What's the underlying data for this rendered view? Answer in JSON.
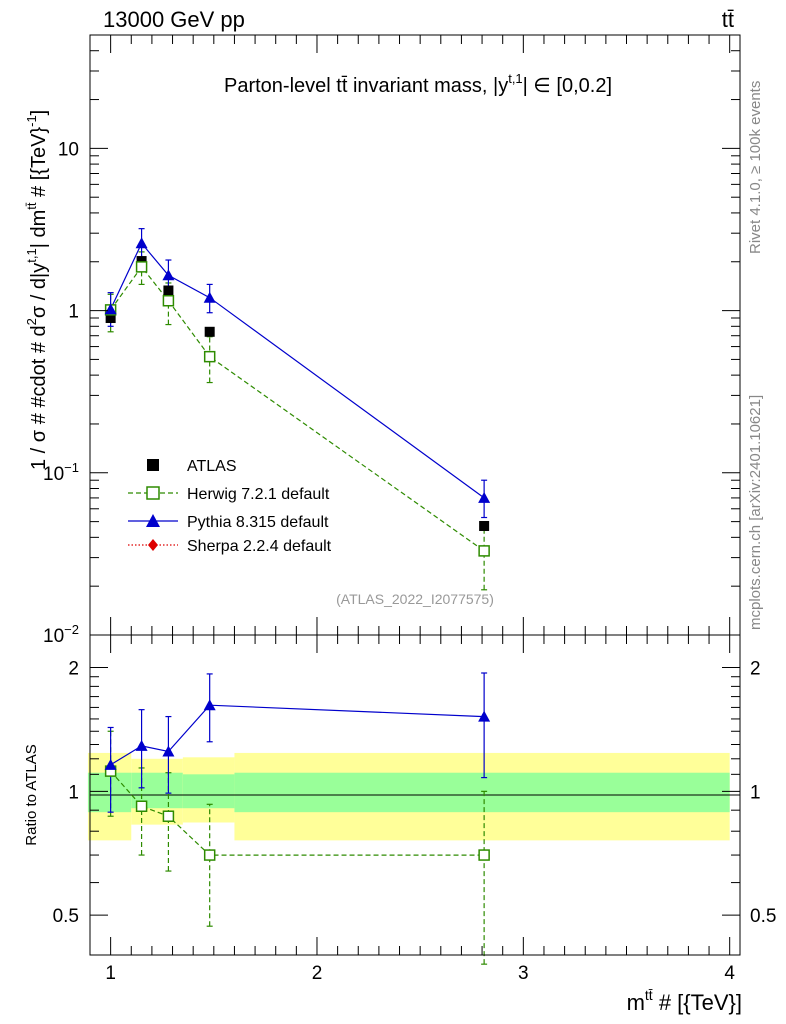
{
  "header": {
    "left_label": "13000 GeV pp",
    "right_label": "tt̄"
  },
  "side_labels": {
    "rivet": "Rivet 4.1.0, ≥ 100k events",
    "mcplots": "mcplots.cern.ch [arXiv:2401.10621]"
  },
  "chart_data": [
    {
      "id": "main",
      "type": "scatter",
      "title": "Parton-level tt̄ invariant mass, |y^{t,1}| ∈ [0,0.2]",
      "title_parts": {
        "pre": "Parton-level tt̄ invariant mass, |y",
        "sup": "t,1",
        "post": "| ∈ [0,0.2]"
      },
      "watermark": "(ATLAS_2022_I2077575)",
      "ylabel_parts": {
        "a": "1 / σ # #cdot # d",
        "sup1": "2",
        "b": "σ / d|y",
        "sup2": "t,1",
        "c": "| dm",
        "sup3": "tt̄",
        "d": " # [{TeV}",
        "sup4": "-1",
        "e": "]"
      },
      "yscale": "log",
      "ylim": [
        0.01,
        50
      ],
      "xlim": [
        0.9,
        4.05
      ],
      "y_ticks": [
        {
          "value": 0.01,
          "label": "10",
          "sup": "−2"
        },
        {
          "value": 0.1,
          "label": "10",
          "sup": "−1"
        },
        {
          "value": 1,
          "label": "1",
          "sup": ""
        },
        {
          "value": 10,
          "label": "10",
          "sup": ""
        }
      ],
      "series": [
        {
          "name": "ATLAS",
          "marker": "square-filled",
          "color": "#000000",
          "points": [
            {
              "x": 1.0,
              "y": 0.9
            },
            {
              "x": 1.15,
              "y": 2.02
            },
            {
              "x": 1.28,
              "y": 1.33
            },
            {
              "x": 1.48,
              "y": 0.74
            },
            {
              "x": 2.81,
              "y": 0.047
            }
          ]
        },
        {
          "name": "Herwig 7.2.1 default",
          "marker": "square-open",
          "line": "dashed",
          "color": "#2e8b00",
          "points": [
            {
              "x": 1.0,
              "y": 1.01,
              "lo": 0.74,
              "hi": 1.26
            },
            {
              "x": 1.15,
              "y": 1.86,
              "lo": 1.45,
              "hi": 2.3
            },
            {
              "x": 1.28,
              "y": 1.15,
              "lo": 0.82,
              "hi": 1.48
            },
            {
              "x": 1.48,
              "y": 0.52,
              "lo": 0.36,
              "hi": 0.69
            },
            {
              "x": 2.81,
              "y": 0.033,
              "lo": 0.019,
              "hi": 0.047
            }
          ]
        },
        {
          "name": "Pythia 8.315 default",
          "marker": "triangle-filled",
          "line": "solid",
          "color": "#0000cc",
          "points": [
            {
              "x": 1.0,
              "y": 1.02,
              "lo": 0.8,
              "hi": 1.29
            },
            {
              "x": 1.15,
              "y": 2.6,
              "lo": 2.05,
              "hi": 3.2
            },
            {
              "x": 1.28,
              "y": 1.65,
              "lo": 1.32,
              "hi": 2.05
            },
            {
              "x": 1.48,
              "y": 1.2,
              "lo": 0.97,
              "hi": 1.45
            },
            {
              "x": 2.81,
              "y": 0.07,
              "lo": 0.053,
              "hi": 0.09
            }
          ]
        },
        {
          "name": "Sherpa 2.2.4 default",
          "marker": "diamond-filled",
          "line": "dotted",
          "color": "#dd0000",
          "points": []
        }
      ]
    },
    {
      "id": "ratio",
      "type": "scatter",
      "ylabel": "Ratio to ATLAS",
      "xlabel_parts": {
        "pre": "m",
        "sup": "tt̄",
        "post": " # [{TeV}]"
      },
      "yscale": "log",
      "ylim": [
        0.4,
        2.4
      ],
      "xlim": [
        0.9,
        4.05
      ],
      "x_ticks": [
        {
          "value": 1,
          "label": "1"
        },
        {
          "value": 2,
          "label": "2"
        },
        {
          "value": 3,
          "label": "3"
        },
        {
          "value": 4,
          "label": "4"
        }
      ],
      "y_ticks": [
        {
          "value": 0.5,
          "label": "0.5"
        },
        {
          "value": 1,
          "label": "1"
        },
        {
          "value": 2,
          "label": "2"
        }
      ],
      "bands": [
        {
          "x0": 0.89,
          "x1": 1.1,
          "stat_lo": 0.89,
          "stat_hi": 1.11,
          "tot_lo": 0.76,
          "tot_hi": 1.24
        },
        {
          "x0": 1.1,
          "x1": 1.35,
          "stat_lo": 0.91,
          "stat_hi": 1.11,
          "tot_lo": 0.83,
          "tot_hi": 1.2
        },
        {
          "x0": 1.35,
          "x1": 1.6,
          "stat_lo": 0.91,
          "stat_hi": 1.1,
          "tot_lo": 0.84,
          "tot_hi": 1.21
        },
        {
          "x0": 1.6,
          "x1": 4.0,
          "stat_lo": 0.89,
          "stat_hi": 1.11,
          "tot_lo": 0.76,
          "tot_hi": 1.24
        }
      ],
      "band_colors": {
        "stat": "#99ff99",
        "total": "#ffff99"
      },
      "series": [
        {
          "name": "Herwig 7.2.1 default",
          "marker": "square-open",
          "line": "dashed",
          "color": "#2e8b00",
          "points": [
            {
              "x": 1.0,
              "y": 1.12,
              "lo": 0.87,
              "hi": 1.4
            },
            {
              "x": 1.15,
              "y": 0.92,
              "lo": 0.7,
              "hi": 1.14
            },
            {
              "x": 1.28,
              "y": 0.87,
              "lo": 0.64,
              "hi": 1.11
            },
            {
              "x": 1.48,
              "y": 0.7,
              "lo": 0.47,
              "hi": 0.93
            },
            {
              "x": 2.81,
              "y": 0.7,
              "lo": 0.38,
              "hi": 1.0
            }
          ]
        },
        {
          "name": "Pythia 8.315 default",
          "marker": "triangle-filled",
          "line": "solid",
          "color": "#0000cc",
          "points": [
            {
              "x": 1.0,
              "y": 1.16,
              "lo": 0.89,
              "hi": 1.43
            },
            {
              "x": 1.15,
              "y": 1.29,
              "lo": 1.02,
              "hi": 1.58
            },
            {
              "x": 1.28,
              "y": 1.25,
              "lo": 0.99,
              "hi": 1.52
            },
            {
              "x": 1.48,
              "y": 1.62,
              "lo": 1.32,
              "hi": 1.93
            },
            {
              "x": 2.81,
              "y": 1.52,
              "lo": 1.08,
              "hi": 1.94
            }
          ]
        }
      ]
    }
  ]
}
